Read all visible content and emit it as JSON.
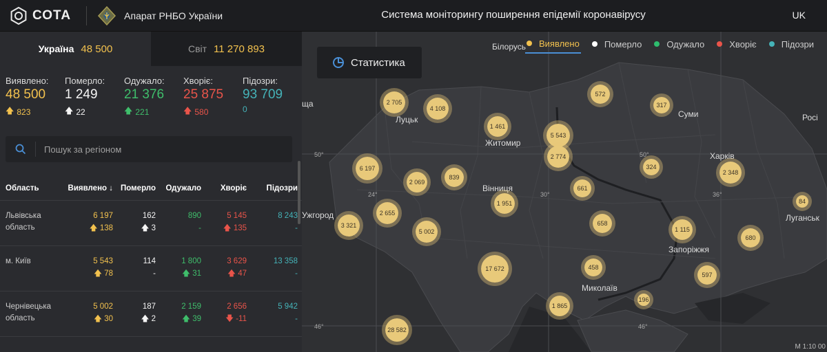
{
  "header": {
    "logo_text": "СОТА",
    "agency_name": "Апарат РНБО України",
    "title": "Система моніторингу поширення епідемії коронавірусу",
    "lang": "UK"
  },
  "tabs": [
    {
      "label": "Україна",
      "value": "48 500"
    },
    {
      "label": "Світ",
      "value": "11 270 893"
    }
  ],
  "stats": [
    {
      "label": "Виявлено:",
      "value": "48 500",
      "delta": "823",
      "color": "#f2c14e",
      "arrow": "up"
    },
    {
      "label": "Померло:",
      "value": "1 249",
      "delta": "22",
      "color": "#f5f5f5",
      "arrow": "up"
    },
    {
      "label": "Одужало:",
      "value": "21 376",
      "delta": "221",
      "color": "#3fbe6b",
      "arrow": "up"
    },
    {
      "label": "Хворіє:",
      "value": "25 875",
      "delta": "580",
      "color": "#e9544a",
      "arrow": "up"
    },
    {
      "label": "Підозри:",
      "value": "93 709",
      "delta": "0",
      "color": "#45b3b8",
      "arrow": "none"
    }
  ],
  "search": {
    "placeholder": "Пошук за регіоном"
  },
  "table": {
    "headers": [
      "Область",
      "Виявлено",
      "Померло",
      "Одужало",
      "Хворіє",
      "Підозри"
    ],
    "rows": [
      {
        "region": "Львівська область",
        "confirmed": "6 197",
        "confirmed_delta": "138",
        "deaths": "162",
        "deaths_delta": "3",
        "recovered": "890",
        "recovered_delta": "-",
        "sick": "5 145",
        "sick_delta": "135",
        "suspected": "8 243",
        "suspected_delta": "-"
      },
      {
        "region": "м. Київ",
        "confirmed": "5 543",
        "confirmed_delta": "78",
        "deaths": "114",
        "deaths_delta": "-",
        "recovered": "1 800",
        "recovered_delta": "31",
        "sick": "3 629",
        "sick_delta": "47",
        "suspected": "13 358",
        "suspected_delta": "-"
      },
      {
        "region": "Чернівецька область",
        "confirmed": "5 002",
        "confirmed_delta": "30",
        "deaths": "187",
        "deaths_delta": "2",
        "recovered": "2 159",
        "recovered_delta": "39",
        "sick": "2 656",
        "sick_delta": "-11",
        "suspected": "5 942",
        "suspected_delta": "-"
      }
    ]
  },
  "map": {
    "stat_button": "Статистика",
    "legend": [
      {
        "label": "Виявлено",
        "color": "#f2c14e",
        "active": true
      },
      {
        "label": "Померло",
        "color": "#ffffff",
        "active": false
      },
      {
        "label": "Одужало",
        "color": "#2ebd6e",
        "active": false
      },
      {
        "label": "Хворіє",
        "color": "#e9544a",
        "active": false
      },
      {
        "label": "Підозри",
        "color": "#45b3b8",
        "active": false
      }
    ],
    "cities": [
      "Білорусь",
      "Луцьк",
      "Житомир",
      "Суми",
      "Харків",
      "Росі",
      "Вінниця",
      "Ужгород",
      "Луганськ",
      "Запоріжжя",
      "Миколаїв",
      "ща"
    ],
    "coords": [
      "50°",
      "50°",
      "24°",
      "30°",
      "36°",
      "46°",
      "46°"
    ],
    "bubbles": [
      "2 705",
      "4 108",
      "1 461",
      "5 543",
      "2 774",
      "572",
      "317",
      "6 197",
      "2 069",
      "839",
      "324",
      "2 348",
      "661",
      "1 951",
      "2 655",
      "3 321",
      "5 002",
      "658",
      "1 115",
      "84",
      "680",
      "17 672",
      "458",
      "597",
      "196",
      "1 865",
      "28 582"
    ],
    "scale": "M 1:10 00"
  }
}
